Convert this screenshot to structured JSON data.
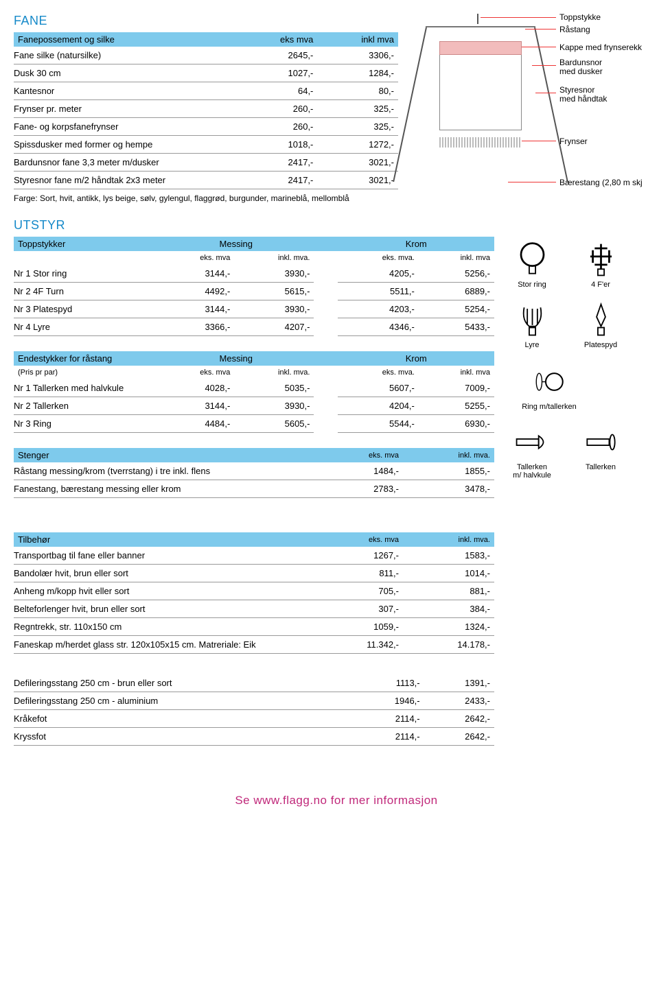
{
  "colors": {
    "section_title": "#1589c9",
    "header_bg": "#7ecaec",
    "footer": "#c0287a",
    "border": "#999999",
    "text": "#000000",
    "pointer": "#e33333"
  },
  "fane": {
    "title": "FANE",
    "header": {
      "name": "Fanepossement og silke",
      "col1": "eks mva",
      "col2": "inkl mva"
    },
    "rows": [
      {
        "name": "Fane silke (natursilke)",
        "eks": "2645,-",
        "inkl": "3306,-"
      },
      {
        "name": "Dusk 30 cm",
        "eks": "1027,-",
        "inkl": "1284,-"
      },
      {
        "name": "Kantesnor",
        "eks": "64,-",
        "inkl": "80,-"
      },
      {
        "name": "Frynser pr. meter",
        "eks": "260,-",
        "inkl": "325,-"
      },
      {
        "name": "Fane- og korpsfanefrynser",
        "eks": "260,-",
        "inkl": "325,-"
      },
      {
        "name": "Spissdusker med former og hempe",
        "eks": "1018,-",
        "inkl": "1272,-"
      },
      {
        "name": "Bardunsnor fane 3,3 meter m/dusker",
        "eks": "2417,-",
        "inkl": "3021,-"
      },
      {
        "name": "Styresnor fane m/2 håndtak 2x3 meter",
        "eks": "2417,-",
        "inkl": "3021,-"
      }
    ],
    "note": "Farge: Sort, hvit, antikk, lys beige, sølv, gylengul, flaggrød, burgunder, marineblå, mellomblå"
  },
  "diagram_labels": {
    "toppstykke": "Toppstykke",
    "rastang": "Råstang",
    "kappe": "Kappe med frynserekk",
    "bardunsnor": "Bardunsnor",
    "bardunsnor2": "med dusker",
    "styresnor": "Styresnor",
    "styresnor2": "med håndtak",
    "frynser": "Frynser",
    "baerestang": "Bærestang (2,80 m skj"
  },
  "utstyr": {
    "title": "UTSTYR",
    "toppstykker": {
      "header": {
        "name": "Toppstykker",
        "g1": "Messing",
        "g2": "Krom"
      },
      "sub": {
        "c1": "eks. mva",
        "c2": "inkl. mva.",
        "c3": "eks. mva.",
        "c4": "inkl. mva"
      },
      "rows": [
        {
          "name": "Nr 1 Stor ring",
          "v": [
            "3144,-",
            "3930,-",
            "4205,-",
            "5256,-"
          ]
        },
        {
          "name": "Nr 2 4F Turn",
          "v": [
            "4492,-",
            "5615,-",
            "5511,-",
            "6889,-"
          ]
        },
        {
          "name": "Nr 3 Platespyd",
          "v": [
            "3144,-",
            "3930,-",
            "4203,-",
            "5254,-"
          ]
        },
        {
          "name": "Nr 4 Lyre",
          "v": [
            "3366,-",
            "4207,-",
            "4346,-",
            "5433,-"
          ]
        }
      ]
    },
    "endestykker": {
      "header": {
        "name": "Endestykker for råstang",
        "g1": "Messing",
        "g2": "Krom"
      },
      "subname": "(Pris pr par)",
      "sub": {
        "c1": "eks. mva",
        "c2": "inkl. mva.",
        "c3": "eks. mva.",
        "c4": "inkl. mva"
      },
      "rows": [
        {
          "name": "Nr 1 Tallerken med halvkule",
          "v": [
            "4028,-",
            "5035,-",
            "5607,-",
            "7009,-"
          ]
        },
        {
          "name": "Nr 2 Tallerken",
          "v": [
            "3144,-",
            "3930,-",
            "4204,-",
            "5255,-"
          ]
        },
        {
          "name": "Nr 3 Ring",
          "v": [
            "4484,-",
            "5605,-",
            "5544,-",
            "6930,-"
          ]
        }
      ]
    },
    "stenger": {
      "header": {
        "name": "Stenger",
        "c1": "eks. mva",
        "c2": "inkl. mva."
      },
      "rows": [
        {
          "name": "Råstang messing/krom (tverrstang) i tre inkl. flens",
          "eks": "1484,-",
          "inkl": "1855,-"
        },
        {
          "name": "Fanestang, bærestang messing eller krom",
          "eks": "2783,-",
          "inkl": "3478,-"
        }
      ]
    },
    "tilbehor": {
      "header": {
        "name": "Tilbehør",
        "c1": "eks. mva",
        "c2": "inkl. mva."
      },
      "rows": [
        {
          "name": "Transportbag til fane eller banner",
          "eks": "1267,-",
          "inkl": "1583,-"
        },
        {
          "name": "Bandolær hvit, brun eller sort",
          "eks": "811,-",
          "inkl": "1014,-"
        },
        {
          "name": "Anheng m/kopp hvit eller sort",
          "eks": "705,-",
          "inkl": "881,-"
        },
        {
          "name": "Belteforlenger hvit, brun eller sort",
          "eks": "307,-",
          "inkl": "384,-"
        },
        {
          "name": "Regntrekk, str. 110x150 cm",
          "eks": "1059,-",
          "inkl": "1324,-"
        },
        {
          "name": "Faneskap m/herdet glass str. 120x105x15 cm. Matreriale: Eik",
          "eks": "11.342,-",
          "inkl": "14.178,-"
        }
      ],
      "rows2": [
        {
          "name": "Defileringsstang 250 cm - brun eller sort",
          "eks": "1113,-",
          "inkl": "1391,-"
        },
        {
          "name": "Defileringsstang 250 cm - aluminium",
          "eks": "1946,-",
          "inkl": "2433,-"
        },
        {
          "name": "Kråkefot",
          "eks": "2114,-",
          "inkl": "2642,-"
        },
        {
          "name": "Kryssfot",
          "eks": "2114,-",
          "inkl": "2642,-"
        }
      ]
    }
  },
  "icons": {
    "stor_ring": "Stor ring",
    "fire_f": "4 F'er",
    "lyre": "Lyre",
    "platespyd": "Platespyd",
    "ring_tallerken": "Ring m/tallerken",
    "tallerken_halvkule": "Tallerken\nm/ halvkule",
    "tallerken": "Tallerken"
  },
  "footer": "Se www.flagg.no for mer informasjon"
}
